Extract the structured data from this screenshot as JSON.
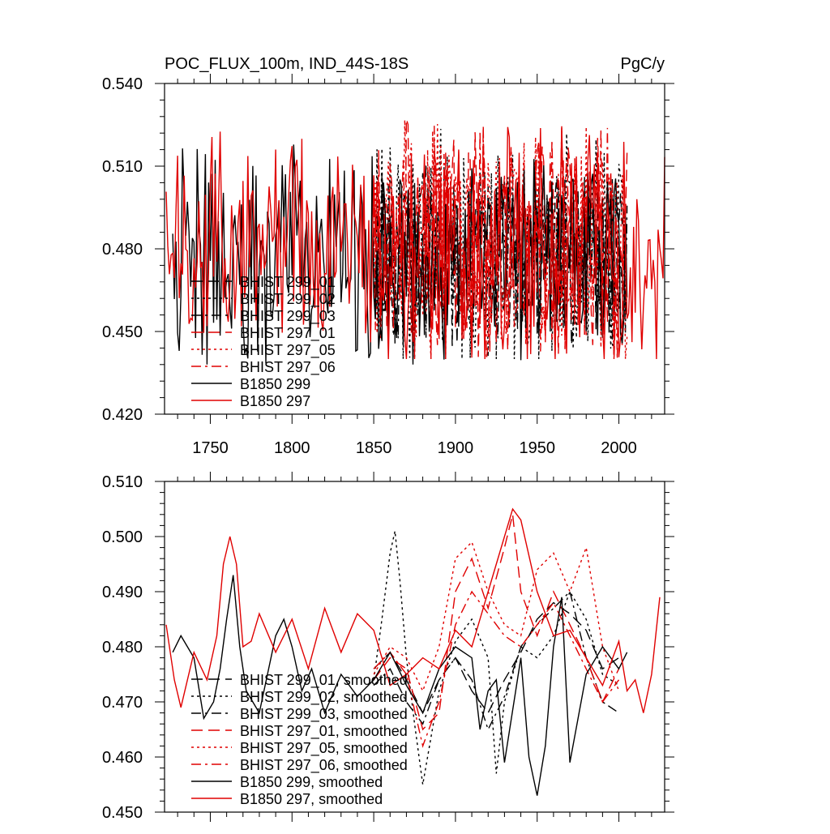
{
  "chart_data": [
    {
      "type": "line",
      "title": "POC_FLUX_100m, IND_44S-18S",
      "units": "PgC/y",
      "xlabel": "",
      "ylabel": "",
      "xlim": [
        1722,
        2028
      ],
      "ylim": [
        0.42,
        0.54
      ],
      "x_ticks": [
        1750,
        1800,
        1850,
        1900,
        1950,
        2000
      ],
      "x_tick_labels": [
        "1750",
        "1800",
        "1850",
        "1900",
        "1950",
        "2000"
      ],
      "y_ticks": [
        0.42,
        0.45,
        0.48,
        0.51,
        0.54
      ],
      "y_tick_labels": [
        "0.420",
        "0.450",
        "0.480",
        "0.510",
        "0.540"
      ],
      "grid": false,
      "legend_position": "bottom-left",
      "series": [
        {
          "name": "BHIST 299_01",
          "color": "#000000",
          "dash": "dash",
          "x_range": [
            1850,
            2005
          ],
          "approx_mean": 0.478,
          "approx_range": [
            0.44,
            0.51
          ]
        },
        {
          "name": "BHIST 299_02",
          "color": "#000000",
          "dash": "dot",
          "x_range": [
            1850,
            2005
          ],
          "approx_mean": 0.478,
          "approx_range": [
            0.44,
            0.537
          ]
        },
        {
          "name": "BHIST 299_03",
          "color": "#000000",
          "dash": "dashdot",
          "x_range": [
            1850,
            2005
          ],
          "approx_mean": 0.477,
          "approx_range": [
            0.44,
            0.51
          ]
        },
        {
          "name": "BHIST 297_01",
          "color": "#e00000",
          "dash": "dash",
          "x_range": [
            1850,
            2005
          ],
          "approx_mean": 0.482,
          "approx_range": [
            0.44,
            0.537
          ]
        },
        {
          "name": "BHIST 297_05",
          "color": "#e00000",
          "dash": "dot",
          "x_range": [
            1850,
            2005
          ],
          "approx_mean": 0.483,
          "approx_range": [
            0.44,
            0.53
          ]
        },
        {
          "name": "BHIST 297_06",
          "color": "#e00000",
          "dash": "dashdot",
          "x_range": [
            1850,
            2005
          ],
          "approx_mean": 0.482,
          "approx_range": [
            0.44,
            0.525
          ]
        },
        {
          "name": "B1850 299",
          "color": "#000000",
          "dash": "solid",
          "x_range": [
            1727,
            2005
          ],
          "approx_mean": 0.476,
          "approx_range": [
            0.438,
            0.52
          ]
        },
        {
          "name": "B1850 297",
          "color": "#e00000",
          "dash": "solid",
          "x_range": [
            1723,
            2028
          ],
          "approx_mean": 0.479,
          "approx_range": [
            0.44,
            0.53
          ]
        }
      ]
    },
    {
      "type": "line",
      "title": "",
      "xlabel": "",
      "ylabel": "",
      "xlim": [
        1722,
        2028
      ],
      "ylim": [
        0.45,
        0.51
      ],
      "x_ticks": [
        1750,
        1800,
        1850,
        1900,
        1950,
        2000
      ],
      "y_ticks": [
        0.45,
        0.46,
        0.47,
        0.48,
        0.49,
        0.5,
        0.51
      ],
      "y_tick_labels": [
        "0.450",
        "0.460",
        "0.470",
        "0.480",
        "0.490",
        "0.500",
        "0.510"
      ],
      "grid": false,
      "legend_position": "bottom-left",
      "series": [
        {
          "name": "BHIST 299_01, smoothed",
          "color": "#000000",
          "dash": "dash",
          "x": [
            1850,
            1860,
            1870,
            1880,
            1890,
            1900,
            1910,
            1920,
            1930,
            1940,
            1950,
            1960,
            1970,
            1980,
            1990,
            2000
          ],
          "y": [
            0.476,
            0.479,
            0.474,
            0.468,
            0.474,
            0.478,
            0.472,
            0.468,
            0.474,
            0.479,
            0.485,
            0.488,
            0.486,
            0.483,
            0.476,
            0.478
          ]
        },
        {
          "name": "BHIST 299_02, smoothed",
          "color": "#000000",
          "dash": "dot",
          "x": [
            1850,
            1855,
            1860,
            1863,
            1866,
            1870,
            1875,
            1880,
            1890,
            1900,
            1910,
            1920,
            1925,
            1930,
            1940,
            1950,
            1960,
            1970,
            1980,
            1990,
            2000
          ],
          "y": [
            0.474,
            0.485,
            0.497,
            0.501,
            0.492,
            0.478,
            0.466,
            0.455,
            0.472,
            0.481,
            0.485,
            0.478,
            0.457,
            0.47,
            0.48,
            0.478,
            0.482,
            0.49,
            0.485,
            0.475,
            0.473
          ]
        },
        {
          "name": "BHIST 299_03, smoothed",
          "color": "#000000",
          "dash": "dashdot",
          "x": [
            1850,
            1860,
            1870,
            1880,
            1890,
            1900,
            1910,
            1920,
            1930,
            1940,
            1950,
            1960,
            1970,
            1980,
            1990,
            2000
          ],
          "y": [
            0.473,
            0.476,
            0.47,
            0.466,
            0.474,
            0.478,
            0.474,
            0.465,
            0.471,
            0.48,
            0.484,
            0.487,
            0.49,
            0.478,
            0.47,
            0.468
          ]
        },
        {
          "name": "BHIST 297_01, smoothed",
          "color": "#e00000",
          "dash": "dash",
          "x": [
            1850,
            1860,
            1870,
            1880,
            1890,
            1900,
            1910,
            1920,
            1930,
            1935,
            1940,
            1950,
            1960,
            1970,
            1980,
            1990,
            2000
          ],
          "y": [
            0.474,
            0.478,
            0.476,
            0.465,
            0.468,
            0.49,
            0.496,
            0.487,
            0.498,
            0.504,
            0.49,
            0.482,
            0.49,
            0.484,
            0.478,
            0.47,
            0.476
          ]
        },
        {
          "name": "BHIST 297_05, smoothed",
          "color": "#e00000",
          "dash": "dot",
          "x": [
            1850,
            1860,
            1870,
            1880,
            1890,
            1900,
            1910,
            1920,
            1930,
            1940,
            1950,
            1960,
            1970,
            1980,
            1990,
            2000
          ],
          "y": [
            0.475,
            0.48,
            0.478,
            0.472,
            0.48,
            0.496,
            0.499,
            0.49,
            0.484,
            0.482,
            0.494,
            0.497,
            0.49,
            0.498,
            0.48,
            0.472
          ]
        },
        {
          "name": "BHIST 297_06, smoothed",
          "color": "#e00000",
          "dash": "dashdot",
          "x": [
            1850,
            1860,
            1870,
            1880,
            1890,
            1900,
            1910,
            1920,
            1930,
            1940,
            1950,
            1960,
            1970,
            1980,
            1990,
            2000
          ],
          "y": [
            0.476,
            0.479,
            0.475,
            0.462,
            0.47,
            0.484,
            0.49,
            0.486,
            0.482,
            0.48,
            0.484,
            0.488,
            0.482,
            0.476,
            0.47,
            0.474
          ]
        },
        {
          "name": "B1850 299, smoothed",
          "color": "#000000",
          "dash": "solid",
          "x": [
            1727,
            1732,
            1740,
            1746,
            1752,
            1756,
            1760,
            1764,
            1768,
            1772,
            1780,
            1790,
            1795,
            1800,
            1806,
            1812,
            1820,
            1830,
            1840,
            1850,
            1860,
            1870,
            1880,
            1890,
            1900,
            1910,
            1915,
            1920,
            1925,
            1930,
            1940,
            1945,
            1950,
            1955,
            1960,
            1965,
            1970,
            1980,
            1990,
            2000,
            2005
          ],
          "y": [
            0.479,
            0.482,
            0.478,
            0.467,
            0.47,
            0.476,
            0.485,
            0.493,
            0.48,
            0.472,
            0.468,
            0.482,
            0.485,
            0.48,
            0.472,
            0.476,
            0.468,
            0.475,
            0.471,
            0.474,
            0.479,
            0.473,
            0.468,
            0.476,
            0.48,
            0.478,
            0.465,
            0.472,
            0.474,
            0.459,
            0.478,
            0.46,
            0.453,
            0.462,
            0.48,
            0.489,
            0.459,
            0.475,
            0.48,
            0.476,
            0.479
          ]
        },
        {
          "name": "B1850 297, smoothed",
          "color": "#e00000",
          "dash": "solid",
          "x": [
            1723,
            1728,
            1732,
            1740,
            1748,
            1754,
            1758,
            1762,
            1766,
            1770,
            1775,
            1780,
            1790,
            1800,
            1810,
            1820,
            1830,
            1840,
            1850,
            1855,
            1860,
            1870,
            1880,
            1890,
            1900,
            1910,
            1920,
            1930,
            1935,
            1940,
            1950,
            1960,
            1970,
            1980,
            1990,
            2000,
            2005,
            2010,
            2015,
            2020,
            2025
          ],
          "y": [
            0.484,
            0.474,
            0.469,
            0.479,
            0.474,
            0.482,
            0.495,
            0.5,
            0.495,
            0.48,
            0.481,
            0.486,
            0.479,
            0.485,
            0.476,
            0.487,
            0.479,
            0.486,
            0.483,
            0.478,
            0.473,
            0.475,
            0.478,
            0.476,
            0.483,
            0.48,
            0.49,
            0.5,
            0.505,
            0.503,
            0.49,
            0.482,
            0.483,
            0.478,
            0.473,
            0.481,
            0.472,
            0.474,
            0.468,
            0.475,
            0.489
          ]
        }
      ]
    }
  ]
}
